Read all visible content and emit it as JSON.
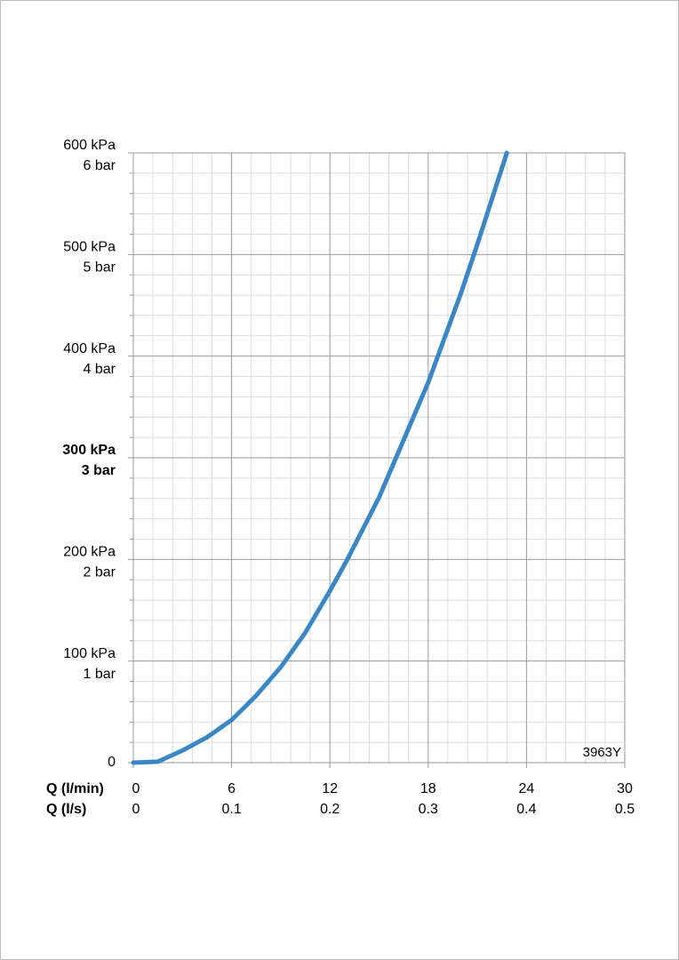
{
  "chart_data": {
    "type": "line",
    "x": [
      0,
      1.5,
      3,
      4.5,
      6,
      7.5,
      9,
      10.5,
      12,
      13,
      15,
      18,
      20,
      21,
      22.8
    ],
    "series": [
      {
        "color": "#3a87c8",
        "values": [
          0,
          1,
          12,
          25,
          42,
          66,
          94,
          128,
          169,
          198,
          261,
          374,
          462,
          510,
          600
        ]
      }
    ],
    "xlim": [
      0,
      30
    ],
    "xticks": [
      0,
      6,
      12,
      18,
      24,
      30
    ],
    "xlabel": "Q (l/min)",
    "x2lim": [
      0,
      0.5
    ],
    "x2ticks": [
      0,
      0.1,
      0.2,
      0.3,
      0.4,
      0.5
    ],
    "x2label": "Q (l/s)",
    "ylim": [
      0,
      600
    ],
    "yticks": [
      0,
      {
        "value": 100,
        "label": "100 kPa"
      },
      {
        "value": 200,
        "label": "200 kPa"
      },
      {
        "value": 300,
        "label": "300 kPa"
      },
      {
        "value": 400,
        "label": "400 kPa"
      },
      {
        "value": 500,
        "label": "500 kPa"
      },
      {
        "value": 600,
        "label": "600 kPa"
      }
    ],
    "y2lim": [
      0,
      6
    ],
    "y2ticks": [
      {
        "value": 1,
        "label": "1 bar"
      },
      {
        "value": 2,
        "label": "2 bar"
      },
      {
        "value": 3,
        "label": "3 bar"
      },
      {
        "value": 4,
        "label": "4 bar"
      },
      {
        "value": 5,
        "label": "5 bar"
      },
      {
        "value": 6,
        "label": "6 bar"
      }
    ],
    "emphasized_ytick": 300,
    "grid": true,
    "minor_divisions": 5,
    "annotation": "3963Y"
  }
}
